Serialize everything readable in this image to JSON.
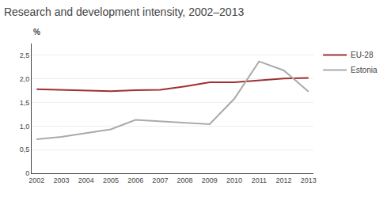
{
  "chart_data": {
    "type": "line",
    "title": "Research and development intensity, 2002–2013",
    "ylabel": "%",
    "x": [
      2002,
      2003,
      2004,
      2005,
      2006,
      2007,
      2008,
      2009,
      2010,
      2011,
      2012,
      2013
    ],
    "series": [
      {
        "name": "EU-28",
        "color": "#a03030",
        "values": [
          1.78,
          1.77,
          1.75,
          1.74,
          1.76,
          1.77,
          1.84,
          1.93,
          1.93,
          1.97,
          2.01,
          2.02
        ]
      },
      {
        "name": "Estonia",
        "color": "#aaaaaa",
        "values": [
          0.72,
          0.77,
          0.85,
          0.93,
          1.13,
          1.1,
          1.07,
          1.04,
          1.58,
          2.37,
          2.18,
          1.73
        ]
      }
    ],
    "xlim": [
      2001.8,
      2013.2
    ],
    "xticks": [
      2002,
      2003,
      2004,
      2005,
      2006,
      2007,
      2008,
      2009,
      2010,
      2011,
      2012,
      2013
    ],
    "ylim": [
      0,
      2.75
    ],
    "yticks": [
      0,
      {
        "value": 0.5,
        "label": "0,5"
      },
      {
        "value": 1.0,
        "label": "1,0"
      },
      {
        "value": 1.5,
        "label": "1,5"
      },
      {
        "value": 2.0,
        "label": "2,0"
      },
      {
        "value": 2.5,
        "label": "2,5"
      }
    ],
    "grid": true,
    "legend": "right"
  }
}
